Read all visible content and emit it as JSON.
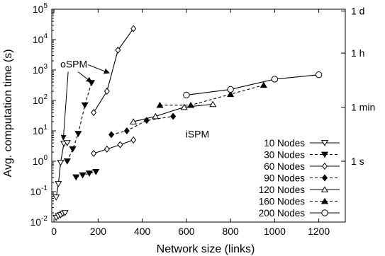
{
  "chart_data": {
    "type": "line",
    "xlabel": "Network size (links)",
    "ylabel": "Avg. computation time (s)",
    "x_ticks": [
      0,
      200,
      400,
      600,
      800,
      1000,
      1200
    ],
    "x_tick_labels": [
      "0",
      "200",
      "400",
      "600",
      "800",
      "1000",
      "1200"
    ],
    "xlim": [
      -10,
      1320
    ],
    "y_scale": "log",
    "ylim": [
      0.01,
      100000
    ],
    "y_tick_labels": [
      "10^-2",
      "10^-1",
      "10^0",
      "10^1",
      "10^2",
      "10^3",
      "10^4",
      "10^5"
    ],
    "y_ticks": [
      0.01,
      0.1,
      1,
      10,
      100,
      1000,
      10000,
      100000
    ],
    "right_axis_labels": [
      {
        "label": "1 s",
        "value": 1
      },
      {
        "label": "1 min",
        "value": 60
      },
      {
        "label": "1 h",
        "value": 3600
      },
      {
        "label": "1 d",
        "value": 86400
      }
    ],
    "annotations": [
      {
        "text": "oSPM",
        "x": 90,
        "y": 1200
      },
      {
        "text": "iSPM",
        "x": 650,
        "y": 6
      }
    ],
    "legend_position": "bottom-right",
    "series": [
      {
        "name": "10 Nodes",
        "marker": "triangle-down-open",
        "dash": "solid",
        "color": "#000000",
        "points": [
          [
            10,
            0.065
          ],
          [
            20,
            0.18
          ],
          [
            30,
            0.9
          ],
          [
            45,
            3.8
          ],
          [
            60,
            4.0
          ]
        ]
      },
      {
        "name": "30 Nodes",
        "marker": "triangle-down-filled",
        "dash": "dashed",
        "color": "#000000",
        "points": [
          [
            60,
            1.0
          ],
          [
            85,
            2.5
          ],
          [
            110,
            8.0
          ],
          [
            140,
            70
          ],
          [
            170,
            380
          ]
        ]
      },
      {
        "name": "60 Nodes",
        "marker": "diamond-open",
        "dash": "solid",
        "color": "#000000",
        "points": [
          [
            180,
            40
          ],
          [
            240,
            200
          ],
          [
            290,
            4500
          ],
          [
            360,
            23000
          ]
        ]
      },
      {
        "name": "90 Nodes",
        "marker": "diamond-filled",
        "dash": "dashed",
        "color": "#000000",
        "points": [
          [
            260,
            7.5
          ],
          [
            330,
            10
          ],
          [
            420,
            22
          ],
          [
            540,
            30
          ]
        ]
      },
      {
        "name": "120 Nodes",
        "marker": "triangle-up-open",
        "dash": "solid",
        "color": "#000000",
        "points": [
          [
            360,
            20
          ],
          [
            460,
            30
          ],
          [
            590,
            60
          ],
          [
            720,
            75
          ]
        ]
      },
      {
        "name": "160 Nodes",
        "marker": "triangle-up-filled",
        "dash": "dashed",
        "color": "#000000",
        "points": [
          [
            480,
            70
          ],
          [
            620,
            70
          ],
          [
            800,
            160
          ],
          [
            950,
            320
          ]
        ]
      },
      {
        "name": "200 Nodes",
        "marker": "circle-open",
        "dash": "solid",
        "color": "#000000",
        "points": [
          [
            600,
            150
          ],
          [
            800,
            230
          ],
          [
            1000,
            500
          ],
          [
            1200,
            700
          ]
        ]
      },
      {
        "name": "",
        "marker": "triangle-down-open",
        "dash": "solid",
        "color": "#000000",
        "points": [
          [
            10,
            0.014
          ],
          [
            20,
            0.016
          ],
          [
            30,
            0.017
          ],
          [
            40,
            0.019
          ],
          [
            50,
            0.02
          ]
        ]
      },
      {
        "name": "",
        "marker": "triangle-down-filled",
        "dash": "dashed",
        "color": "#000000",
        "points": [
          [
            100,
            0.3
          ],
          [
            130,
            0.35
          ],
          [
            160,
            0.4
          ],
          [
            190,
            0.45
          ]
        ]
      },
      {
        "name": "",
        "marker": "diamond-open",
        "dash": "solid",
        "color": "#000000",
        "points": [
          [
            180,
            1.8
          ],
          [
            240,
            2.5
          ],
          [
            300,
            3.5
          ],
          [
            360,
            5.0
          ]
        ]
      }
    ]
  }
}
